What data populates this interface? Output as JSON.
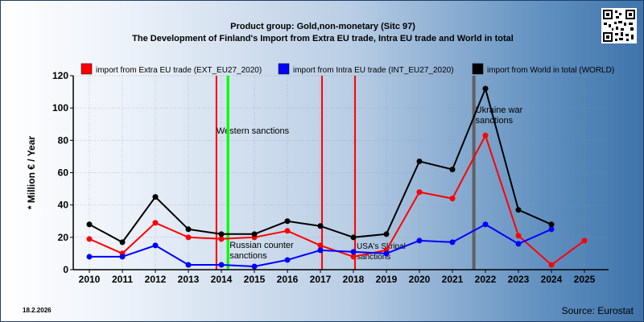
{
  "header": {
    "title_line1": "Product group: Gold,non-monetary (Sitc 97)",
    "title_line2": "The Development of Finland's Import from Extra EU trade, Intra EU trade and World in total"
  },
  "footer": {
    "date": "18.2.2026",
    "source": "Source: Eurostat"
  },
  "colors": {
    "extra_eu": "#ff0000",
    "intra_eu": "#0000ff",
    "world": "#000000",
    "sanction_red": "#ff0000",
    "sanction_green": "#00ff00",
    "sanction_gray": "#606060"
  },
  "chart_data": {
    "type": "line",
    "ylabel": "* Million € / Year",
    "xlabel": "",
    "ylim": [
      0,
      120
    ],
    "yticks": [
      0,
      20,
      40,
      60,
      80,
      100,
      120
    ],
    "x": [
      "2010",
      "2011",
      "2012",
      "2013",
      "2014",
      "2015",
      "2016",
      "2017",
      "2018",
      "2019",
      "2020",
      "2021",
      "2022",
      "2023",
      "2024",
      "2025"
    ],
    "grid": true,
    "legend_position": "top",
    "series": [
      {
        "name": "import from Extra EU trade (EXT_EU27_2020)",
        "color": "#ff0000",
        "values": [
          19,
          10,
          29,
          20,
          19,
          20,
          24,
          15,
          8,
          12,
          48,
          44,
          83,
          21,
          3,
          18
        ]
      },
      {
        "name": "import from Intra EU trade (INT_EU27_2020)",
        "color": "#0000ff",
        "values": [
          8,
          8,
          15,
          3,
          3,
          2,
          6,
          12,
          11,
          10,
          18,
          17,
          28,
          16,
          25,
          null
        ]
      },
      {
        "name": "import from World in total (WORLD)",
        "color": "#000000",
        "values": [
          28,
          17,
          45,
          25,
          22,
          22,
          30,
          27,
          20,
          22,
          67,
          62,
          112,
          37,
          28,
          null
        ]
      }
    ],
    "annotations": [
      {
        "label": "Western sanctions",
        "x": 2013.85,
        "color": "#ff0000"
      },
      {
        "label": "",
        "x": 2014.2,
        "color": "#00ff00"
      },
      {
        "label": "Russian counter sanctions",
        "x": 2014.2,
        "color": "#00ff00"
      },
      {
        "label": "",
        "x": 2017.05,
        "color": "#ff0000"
      },
      {
        "label": "USA's Skripal sanctions",
        "x": 2018.05,
        "color": "#ff0000"
      },
      {
        "label": "Ukraine war sanctions",
        "x": 2021.65,
        "color": "#606060"
      }
    ]
  }
}
